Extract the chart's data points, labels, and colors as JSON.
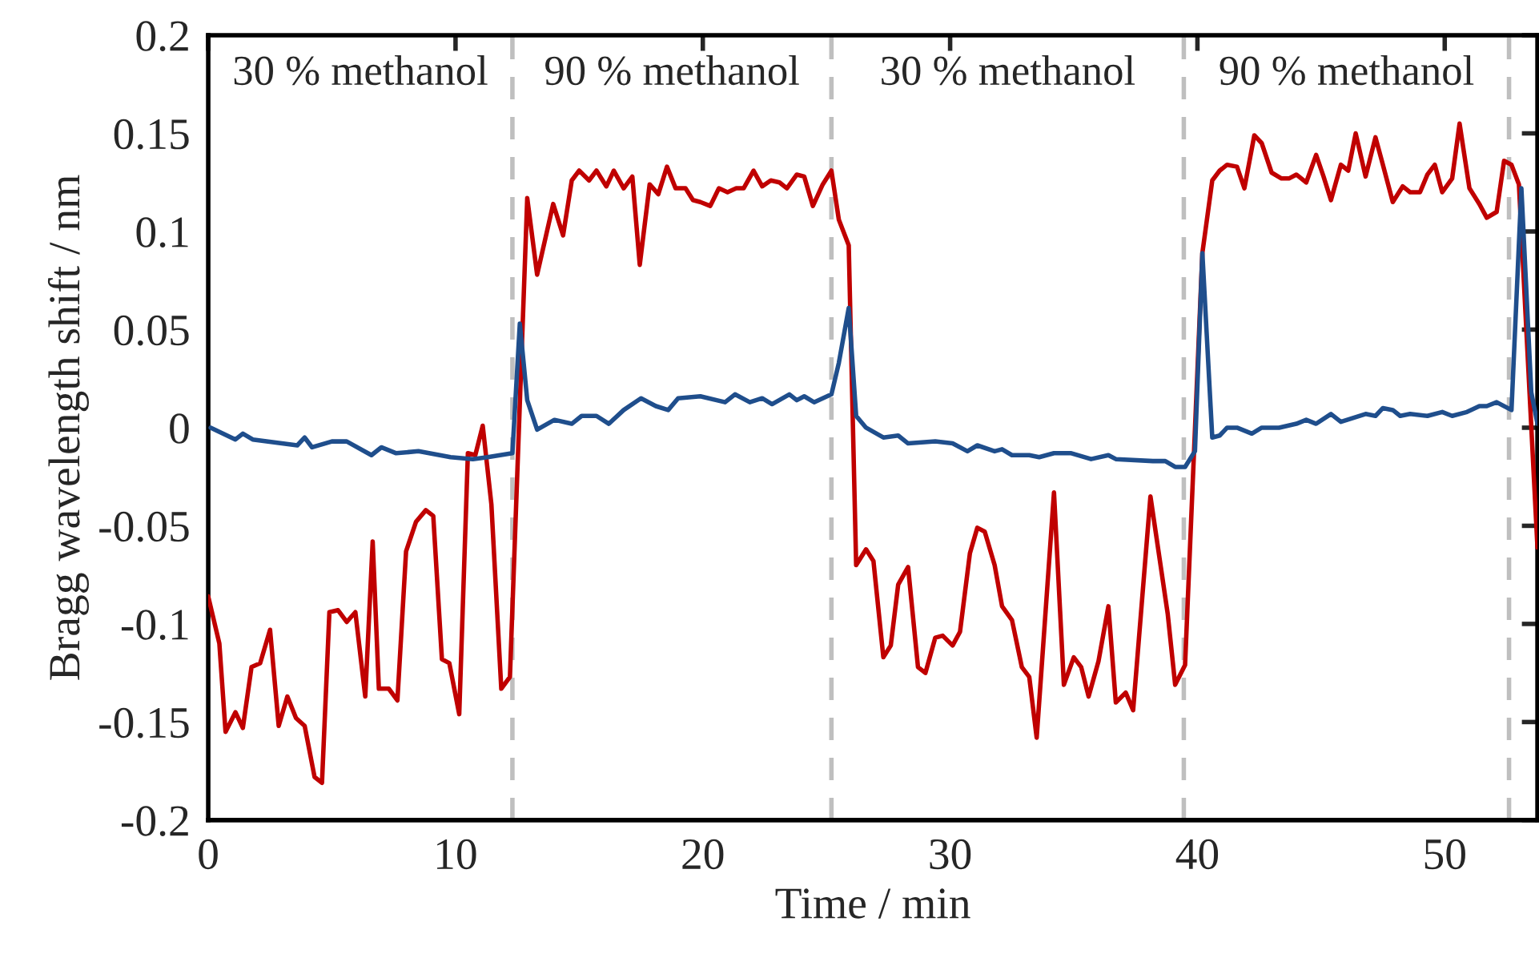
{
  "chart_data": {
    "type": "line",
    "xlabel": "Time / min",
    "ylabel": "Bragg wavelength shift / nm",
    "xlim": [
      0,
      53.75
    ],
    "ylim": [
      -0.2,
      0.2
    ],
    "xticks": [
      0,
      10,
      20,
      30,
      40,
      50
    ],
    "yticks": [
      {
        "value": -0.2,
        "label": "-0.2"
      },
      {
        "value": -0.15,
        "label": "-0.15"
      },
      {
        "value": -0.1,
        "label": "-0.1"
      },
      {
        "value": -0.05,
        "label": "-0.05"
      },
      0,
      0.05,
      0.1,
      0.15,
      0.2
    ],
    "grid": false,
    "legend": false,
    "line_style": "solid",
    "marker": "none",
    "series": [
      {
        "color": "#c00000",
        "x": [
          0,
          0.45,
          0.7,
          1.1,
          1.4,
          1.75,
          2.1,
          2.5,
          2.85,
          3.2,
          3.55,
          3.9,
          4.3,
          4.6,
          4.9,
          5.25,
          5.6,
          5.95,
          6.35,
          6.65,
          6.9,
          7.3,
          7.65,
          8.0,
          8.4,
          8.8,
          9.1,
          9.45,
          9.75,
          10.15,
          10.5,
          10.8,
          11.1,
          11.45,
          11.85,
          12.2,
          12.9,
          13.3,
          13.95,
          14.35,
          14.7,
          15.0,
          15.4,
          15.7,
          16.1,
          16.4,
          16.8,
          17.15,
          17.45,
          17.85,
          18.2,
          18.55,
          18.9,
          19.3,
          19.6,
          19.9,
          20.3,
          20.65,
          21.0,
          21.35,
          21.65,
          22.05,
          22.4,
          22.75,
          23.1,
          23.4,
          23.8,
          24.1,
          24.45,
          24.85,
          25.2,
          25.5,
          25.9,
          26.2,
          26.6,
          26.9,
          27.3,
          27.6,
          27.9,
          28.3,
          28.7,
          29.0,
          29.4,
          29.7,
          30.1,
          30.4,
          30.8,
          31.1,
          31.4,
          31.8,
          32.1,
          32.5,
          32.9,
          33.2,
          33.5,
          34.2,
          34.6,
          35.0,
          35.3,
          35.6,
          36.0,
          36.4,
          36.7,
          37.1,
          37.4,
          38.1,
          38.8,
          39.1,
          39.5,
          40.2,
          40.6,
          40.9,
          41.2,
          41.6,
          41.9,
          42.3,
          42.6,
          43.0,
          43.4,
          43.7,
          44.0,
          44.4,
          44.8,
          45.1,
          45.4,
          45.8,
          46.1,
          46.4,
          46.8,
          47.2,
          47.5,
          47.9,
          48.3,
          48.6,
          49.0,
          49.3,
          49.6,
          49.9,
          50.3,
          50.6,
          51.0,
          51.4,
          51.7,
          52.1,
          52.4,
          52.7,
          53.0,
          53.75
        ],
        "values": [
          -0.086,
          -0.11,
          -0.155,
          -0.145,
          -0.153,
          -0.122,
          -0.12,
          -0.103,
          -0.152,
          -0.137,
          -0.148,
          -0.152,
          -0.178,
          -0.181,
          -0.094,
          -0.093,
          -0.099,
          -0.094,
          -0.137,
          -0.058,
          -0.133,
          -0.133,
          -0.139,
          -0.063,
          -0.048,
          -0.042,
          -0.045,
          -0.118,
          -0.12,
          -0.146,
          -0.013,
          -0.014,
          0.001,
          -0.039,
          -0.133,
          -0.127,
          0.117,
          0.078,
          0.114,
          0.098,
          0.126,
          0.131,
          0.126,
          0.131,
          0.123,
          0.131,
          0.122,
          0.128,
          0.083,
          0.124,
          0.119,
          0.133,
          0.122,
          0.122,
          0.116,
          0.115,
          0.113,
          0.122,
          0.12,
          0.122,
          0.122,
          0.131,
          0.123,
          0.126,
          0.125,
          0.122,
          0.129,
          0.128,
          0.113,
          0.124,
          0.131,
          0.106,
          0.093,
          -0.07,
          -0.062,
          -0.068,
          -0.117,
          -0.111,
          -0.08,
          -0.071,
          -0.122,
          -0.125,
          -0.107,
          -0.106,
          -0.111,
          -0.104,
          -0.064,
          -0.051,
          -0.053,
          -0.07,
          -0.091,
          -0.098,
          -0.122,
          -0.127,
          -0.158,
          -0.033,
          -0.131,
          -0.117,
          -0.122,
          -0.137,
          -0.119,
          -0.091,
          -0.14,
          -0.135,
          -0.144,
          -0.035,
          -0.095,
          -0.131,
          -0.121,
          0.089,
          0.126,
          0.131,
          0.134,
          0.133,
          0.122,
          0.149,
          0.145,
          0.13,
          0.127,
          0.127,
          0.129,
          0.125,
          0.139,
          0.128,
          0.116,
          0.134,
          0.131,
          0.15,
          0.128,
          0.148,
          0.134,
          0.115,
          0.123,
          0.12,
          0.12,
          0.129,
          0.134,
          0.12,
          0.127,
          0.155,
          0.122,
          0.114,
          0.107,
          0.11,
          0.136,
          0.134,
          0.124,
          -0.061
        ]
      },
      {
        "color": "#1f4e8c",
        "x": [
          0.1,
          1.1,
          1.4,
          1.8,
          3.6,
          3.9,
          4.2,
          5.0,
          5.6,
          6.6,
          7.0,
          7.6,
          8.5,
          9.8,
          10.7,
          11.3,
          12.3,
          12.6,
          12.9,
          13.3,
          14.0,
          14.7,
          15.1,
          15.7,
          16.2,
          16.8,
          17.5,
          18.1,
          18.6,
          19.0,
          19.9,
          20.9,
          21.3,
          21.9,
          22.4,
          22.8,
          23.5,
          23.8,
          24.1,
          24.5,
          25.2,
          25.5,
          25.9,
          26.2,
          26.6,
          27.3,
          27.9,
          28.3,
          29.4,
          30.1,
          30.7,
          31.1,
          31.8,
          32.1,
          32.5,
          33.2,
          33.6,
          34.2,
          34.9,
          35.7,
          36.4,
          36.7,
          38.2,
          38.7,
          39.1,
          39.5,
          39.9,
          40.2,
          40.6,
          40.9,
          41.2,
          41.6,
          42.2,
          42.6,
          43.3,
          44.0,
          44.4,
          44.8,
          45.4,
          45.8,
          46.8,
          47.2,
          47.5,
          47.9,
          48.2,
          48.6,
          49.3,
          49.9,
          50.3,
          50.9,
          51.4,
          51.7,
          52.1,
          52.7,
          53.1,
          53.5,
          53.75
        ],
        "values": [
          0,
          -0.006,
          -0.003,
          -0.006,
          -0.009,
          -0.005,
          -0.01,
          -0.007,
          -0.007,
          -0.014,
          -0.01,
          -0.013,
          -0.012,
          -0.015,
          -0.016,
          -0.015,
          -0.013,
          0.053,
          0.014,
          -0.001,
          0.004,
          0.002,
          0.006,
          0.006,
          0.002,
          0.009,
          0.015,
          0.011,
          0.009,
          0.015,
          0.016,
          0.013,
          0.017,
          0.013,
          0.015,
          0.012,
          0.017,
          0.014,
          0.016,
          0.013,
          0.017,
          0.033,
          0.061,
          0.006,
          0,
          -0.005,
          -0.004,
          -0.008,
          -0.007,
          -0.008,
          -0.012,
          -0.009,
          -0.012,
          -0.011,
          -0.014,
          -0.014,
          -0.015,
          -0.013,
          -0.013,
          -0.016,
          -0.014,
          -0.016,
          -0.017,
          -0.017,
          -0.02,
          -0.02,
          -0.012,
          0.089,
          -0.005,
          -0.004,
          0,
          0,
          -0.003,
          0,
          0,
          0.002,
          0.004,
          0.002,
          0.007,
          0.003,
          0.007,
          0.006,
          0.01,
          0.009,
          0.006,
          0.007,
          0.006,
          0.008,
          0.006,
          0.008,
          0.011,
          0.011,
          0.013,
          0.009,
          0.122,
          0.018,
          0.002
        ]
      }
    ],
    "ref_lines": [
      {
        "axis": "x",
        "value": 12.3,
        "color": "#bfbfbf",
        "line_style": "dashed"
      },
      {
        "axis": "x",
        "value": 25.2,
        "color": "#bfbfbf",
        "line_style": "dashed"
      },
      {
        "axis": "x",
        "value": 39.45,
        "color": "#bfbfbf",
        "line_style": "dashed"
      },
      {
        "axis": "x",
        "value": 52.6,
        "color": "#bfbfbf",
        "line_style": "dashed"
      }
    ],
    "annotations": [
      "30 % methanol",
      "90 % methanol",
      "30 % methanol",
      "90 % methanol"
    ]
  }
}
